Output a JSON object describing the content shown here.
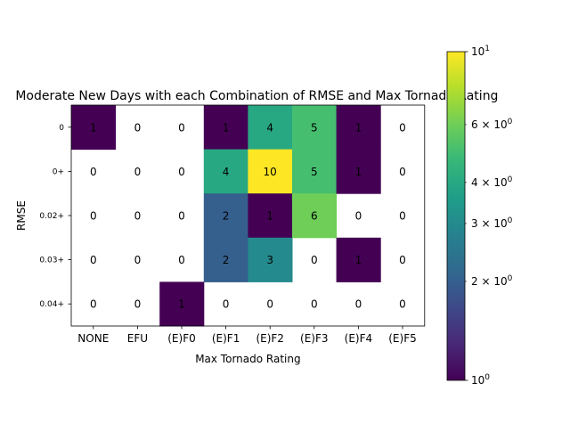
{
  "chart_data": {
    "type": "heatmap",
    "title": "Moderate New Days with each Combination of RMSE and Max Tornado Rating",
    "xlabel": "Max Tornado Rating",
    "ylabel": "RMSE",
    "x_categories": [
      "NONE",
      "EFU",
      "(E)F0",
      "(E)F1",
      "(E)F2",
      "(E)F3",
      "(E)F4",
      "(E)F5"
    ],
    "y_categories": [
      "0",
      "0+",
      "0.02+",
      "0.03+",
      "0.04+"
    ],
    "values": [
      [
        1,
        0,
        0,
        1,
        4,
        5,
        1,
        0
      ],
      [
        0,
        0,
        0,
        4,
        10,
        5,
        1,
        0
      ],
      [
        0,
        0,
        0,
        2,
        1,
        6,
        0,
        0
      ],
      [
        0,
        0,
        0,
        2,
        3,
        0,
        1,
        0
      ],
      [
        0,
        0,
        1,
        0,
        0,
        0,
        0,
        0
      ]
    ],
    "color_scale": "log",
    "colormap": "viridis",
    "zero_cells": "blank (white)",
    "colorbar": {
      "range": [
        1,
        10
      ],
      "major_ticks": [
        {
          "value": 1,
          "base": "10",
          "exp": "0"
        },
        {
          "value": 10,
          "base": "10",
          "exp": "1"
        }
      ],
      "minor_ticks": [
        {
          "value": 2,
          "mant": "2",
          "sep": "×",
          "base": "10",
          "exp": "0"
        },
        {
          "value": 3,
          "mant": "3",
          "sep": "×",
          "base": "10",
          "exp": "0"
        },
        {
          "value": 4,
          "mant": "4",
          "sep": "×",
          "base": "10",
          "exp": "0"
        },
        {
          "value": 6,
          "mant": "6",
          "sep": "×",
          "base": "10",
          "exp": "0"
        }
      ]
    },
    "colors": {
      "viridis_stops": [
        "#440154",
        "#482878",
        "#3e4989",
        "#31688e",
        "#26828e",
        "#1f9e89",
        "#35b779",
        "#6ece58",
        "#b5de2b",
        "#fde725"
      ],
      "empty": "#ffffff",
      "text": "#000000"
    }
  }
}
